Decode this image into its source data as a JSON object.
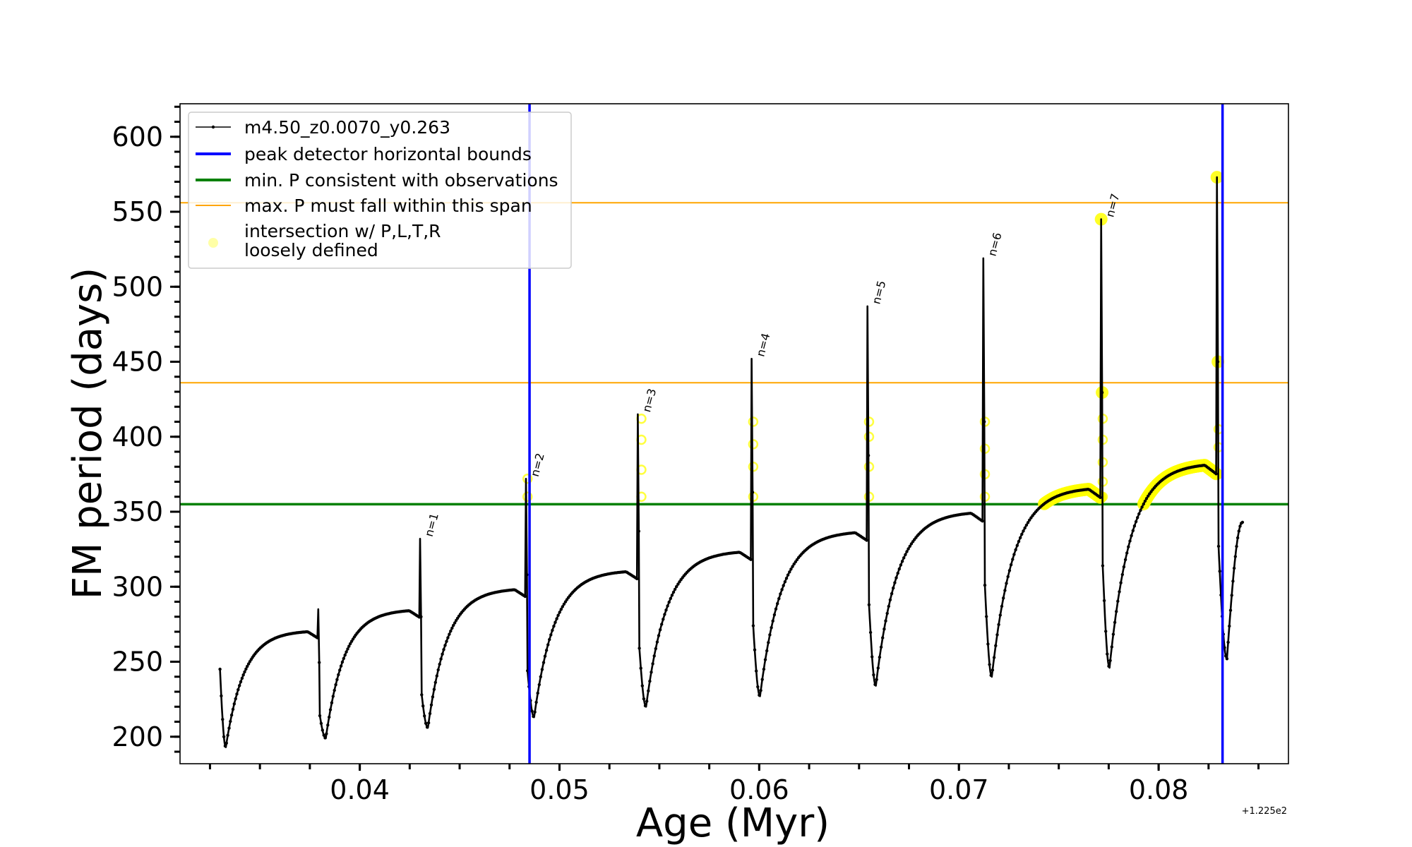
{
  "chart_data": {
    "type": "line",
    "xlabel": "Age (Myr)",
    "ylabel": "FM period (days)",
    "x_offset_label": "+1.225e2",
    "xlim": [
      0.031,
      0.0865
    ],
    "ylim": [
      182,
      622
    ],
    "x_ticks": [
      0.04,
      0.05,
      0.06,
      0.07,
      0.08
    ],
    "x_tick_labels": [
      "0.04",
      "0.05",
      "0.06",
      "0.07",
      "0.08"
    ],
    "y_ticks": [
      200,
      250,
      300,
      350,
      400,
      450,
      500,
      550,
      600
    ],
    "y_tick_labels": [
      "200",
      "250",
      "300",
      "350",
      "400",
      "450",
      "500",
      "550",
      "600"
    ],
    "legend": {
      "location": "upper-left",
      "entries": [
        {
          "label": "m4.50_z0.0070_y0.263",
          "color": "#000000",
          "style": "line-marker"
        },
        {
          "label": "peak detector horizontal bounds",
          "color": "#0000ff",
          "style": "line"
        },
        {
          "label": "min. P consistent with observations",
          "color": "#008000",
          "style": "line"
        },
        {
          "label": "max. P must fall within this span",
          "color": "#ffa500",
          "style": "line"
        },
        {
          "label": "intersection w/ P,L,T,R",
          "label2": "loosely defined",
          "color": "#ffff00",
          "style": "marker"
        }
      ]
    },
    "vertical_lines": {
      "series": "peak detector horizontal bounds",
      "color": "#0000ff",
      "x": [
        0.0485,
        0.0832
      ]
    },
    "min_period_line": {
      "series": "min. P consistent with observations",
      "color": "#008000",
      "y": 355
    },
    "max_period_span": {
      "series": "max. P must fall within this span",
      "color": "#ffa500",
      "y": [
        436,
        556
      ]
    },
    "pulses": [
      {
        "x0": 0.033,
        "y_start": 245,
        "y_min": 193,
        "y_plateau": 270,
        "x_end": 0.038,
        "y_peak": 285,
        "y_after": 214,
        "peak_label": ""
      },
      {
        "x0": 0.038,
        "y_start": 214,
        "y_min": 199,
        "y_plateau": 284,
        "x_end": 0.0431,
        "y_peak": 332,
        "y_after": 228,
        "peak_label": "n=1"
      },
      {
        "x0": 0.0431,
        "y_start": 228,
        "y_min": 206,
        "y_plateau": 298,
        "x_end": 0.0484,
        "y_peak": 372,
        "y_after": 244,
        "peak_label": "n=2"
      },
      {
        "x0": 0.0484,
        "y_start": 244,
        "y_min": 213,
        "y_plateau": 310,
        "x_end": 0.054,
        "y_peak": 415,
        "y_after": 259,
        "peak_label": "n=3"
      },
      {
        "x0": 0.054,
        "y_start": 259,
        "y_min": 220,
        "y_plateau": 323,
        "x_end": 0.0597,
        "y_peak": 452,
        "y_after": 274,
        "peak_label": "n=4"
      },
      {
        "x0": 0.0597,
        "y_start": 274,
        "y_min": 227,
        "y_plateau": 336,
        "x_end": 0.0655,
        "y_peak": 487,
        "y_after": 288,
        "peak_label": "n=5"
      },
      {
        "x0": 0.0655,
        "y_start": 288,
        "y_min": 234,
        "y_plateau": 349,
        "x_end": 0.0713,
        "y_peak": 519,
        "y_after": 301,
        "peak_label": "n=6"
      },
      {
        "x0": 0.0713,
        "y_start": 301,
        "y_min": 240,
        "y_plateau": 365,
        "x_end": 0.0772,
        "y_peak": 545,
        "y_after": 314,
        "peak_label": "n=7"
      },
      {
        "x0": 0.0772,
        "y_start": 314,
        "y_min": 246,
        "y_plateau": 381,
        "x_end": 0.083,
        "y_peak": 573,
        "y_after": 327,
        "peak_label": ""
      },
      {
        "x0": 0.083,
        "y_start": 327,
        "y_min": 252,
        "y_plateau": 343,
        "x_end": 0.0842,
        "y_peak": 343,
        "y_after": 343,
        "peak_label": "",
        "partial": true
      }
    ],
    "intersections": [
      {
        "x": 0.0484,
        "y": [
          360,
          372
        ]
      },
      {
        "x": 0.0541,
        "y": [
          360,
          378,
          398,
          412
        ]
      },
      {
        "x": 0.0597,
        "y": [
          360,
          380,
          395,
          410
        ]
      },
      {
        "x": 0.0655,
        "y": [
          360,
          380,
          400,
          410
        ]
      },
      {
        "x": 0.0713,
        "y": [
          360,
          375,
          392,
          410
        ]
      },
      {
        "x": 0.0772,
        "y": [
          360,
          370,
          383,
          398,
          412
        ]
      },
      {
        "x": 0.083,
        "y": [
          375,
          393,
          405
        ]
      }
    ],
    "intersection_bands": [
      {
        "x_from": 0.0742,
        "x_to": 0.0772
      },
      {
        "x_from": 0.079,
        "x_to": 0.083
      }
    ]
  }
}
